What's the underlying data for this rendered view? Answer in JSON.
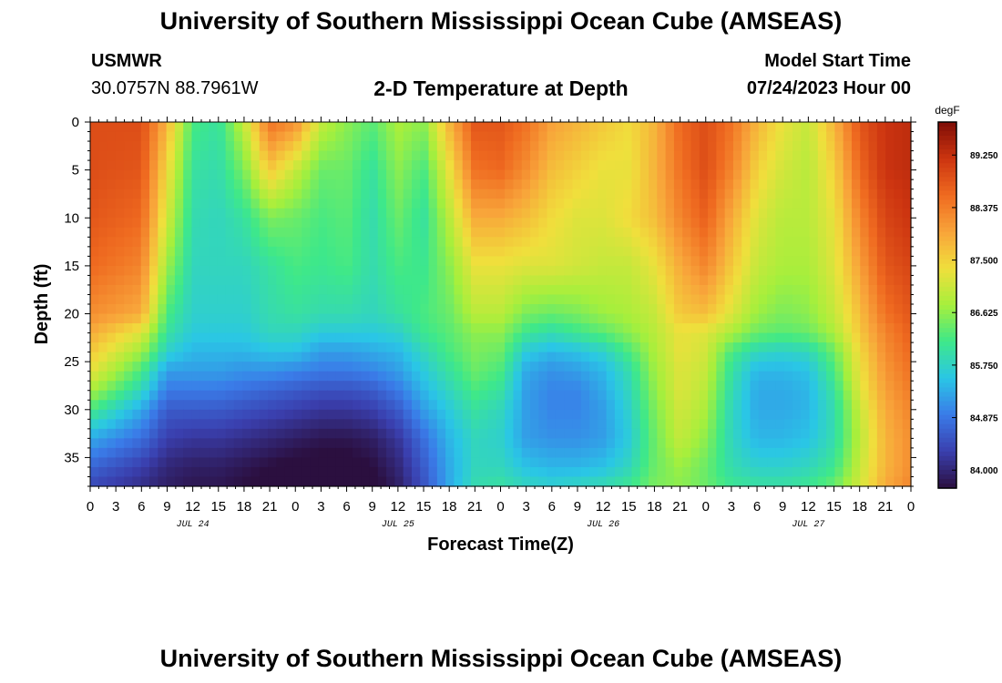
{
  "header": {
    "title": "University of Southern Mississippi Ocean Cube (AMSEAS)",
    "station": "USMWR",
    "coords": "30.0757N  88.7961W",
    "subtitle": "2-D Temperature at Depth",
    "start_label": "Model Start Time",
    "start_value": "07/24/2023 Hour 00"
  },
  "footer": {
    "title": "University of Southern Mississippi Ocean Cube (AMSEAS)"
  },
  "chart_data": {
    "type": "heatmap",
    "title": "2-D Temperature at Depth",
    "xlabel": "Forecast Time(Z)",
    "ylabel": "Depth (ft)",
    "units": "degF",
    "x_hours": [
      0,
      96
    ],
    "x_ticks": [
      "0",
      "3",
      "6",
      "9",
      "12",
      "15",
      "18",
      "21",
      "0",
      "3",
      "6",
      "9",
      "12",
      "15",
      "18",
      "21",
      "0",
      "3",
      "6",
      "9",
      "12",
      "15",
      "18",
      "21",
      "0",
      "3",
      "6",
      "9",
      "12",
      "15",
      "18",
      "21",
      "0"
    ],
    "date_labels": [
      {
        "label": "JUL 24",
        "hour": 12
      },
      {
        "label": "JUL 25",
        "hour": 36
      },
      {
        "label": "JUL 26",
        "hour": 60
      },
      {
        "label": "JUL 27",
        "hour": 84
      }
    ],
    "y_ticks": [
      0,
      5,
      10,
      15,
      20,
      25,
      30,
      35
    ],
    "ylim": [
      0,
      38
    ],
    "y_inverted": true,
    "colorbar_ticks": [
      "89.250",
      "88.375",
      "87.500",
      "86.625",
      "85.750",
      "84.875",
      "84.000"
    ],
    "colorbar_range": [
      83.7,
      89.8
    ],
    "colormap": [
      "#2b0f3f",
      "#3a3fae",
      "#3a7be8",
      "#2ac6e6",
      "#3ee88a",
      "#a6ef3c",
      "#f0df3c",
      "#f8a43a",
      "#ef6a20",
      "#cc3410",
      "#7e0d06"
    ],
    "depths": [
      0,
      5,
      10,
      15,
      20,
      22,
      24,
      26,
      28,
      30,
      33,
      36,
      38
    ],
    "hours": [
      0,
      6,
      9,
      12,
      15,
      18,
      21,
      24,
      27,
      30,
      33,
      36,
      39,
      42,
      45,
      48,
      51,
      54,
      57,
      60,
      63,
      66,
      69,
      72,
      75,
      78,
      81,
      84,
      87,
      90,
      93,
      96
    ],
    "values": [
      [
        88.9,
        88.9,
        87.8,
        86.2,
        86.0,
        87.0,
        88.5,
        88.2,
        87.0,
        86.6,
        86.3,
        86.8,
        86.6,
        87.8,
        88.8,
        88.8,
        88.5,
        88.0,
        87.8,
        87.6,
        87.4,
        87.8,
        88.6,
        88.9,
        88.5,
        87.8,
        87.3,
        87.0,
        87.8,
        88.8,
        89.2,
        89.3
      ],
      [
        88.9,
        88.8,
        87.4,
        86.0,
        85.9,
        86.5,
        87.6,
        87.0,
        86.4,
        86.4,
        86.0,
        86.6,
        86.2,
        87.3,
        88.5,
        88.6,
        88.2,
        87.7,
        87.5,
        87.3,
        87.3,
        87.8,
        88.5,
        88.9,
        88.3,
        87.5,
        87.1,
        86.9,
        87.5,
        88.6,
        89.2,
        89.3
      ],
      [
        88.8,
        88.6,
        87.1,
        85.9,
        85.8,
        86.0,
        86.5,
        86.4,
        86.2,
        86.3,
        85.9,
        86.4,
        86.0,
        86.9,
        87.9,
        87.9,
        87.7,
        87.4,
        87.2,
        87.2,
        87.4,
        87.7,
        88.3,
        88.7,
        87.9,
        87.2,
        86.9,
        86.9,
        87.3,
        88.3,
        89.0,
        89.2
      ],
      [
        88.6,
        88.3,
        86.7,
        85.8,
        85.8,
        85.8,
        86.0,
        86.2,
        86.1,
        86.2,
        85.9,
        86.2,
        86.1,
        86.6,
        87.3,
        87.3,
        87.2,
        87.2,
        87.1,
        87.0,
        87.0,
        87.3,
        87.9,
        88.3,
        87.6,
        87.0,
        86.8,
        86.8,
        87.2,
        88.0,
        88.8,
        89.0
      ],
      [
        88.2,
        87.9,
        86.2,
        85.7,
        85.7,
        85.7,
        85.9,
        86.0,
        85.9,
        85.9,
        85.8,
        86.0,
        86.2,
        86.4,
        86.9,
        86.9,
        86.5,
        86.4,
        86.5,
        86.7,
        86.8,
        87.0,
        87.6,
        87.7,
        87.2,
        86.7,
        86.5,
        86.6,
        87.0,
        87.7,
        88.5,
        88.8
      ],
      [
        87.9,
        87.2,
        86.0,
        85.6,
        85.6,
        85.6,
        85.8,
        85.8,
        85.6,
        85.6,
        85.6,
        85.7,
        86.1,
        86.3,
        86.6,
        86.6,
        86.1,
        85.9,
        86.1,
        86.3,
        86.6,
        86.9,
        87.3,
        87.2,
        86.8,
        86.4,
        86.3,
        86.4,
        86.8,
        87.6,
        88.3,
        88.7
      ],
      [
        87.6,
        86.7,
        85.7,
        85.4,
        85.4,
        85.4,
        85.5,
        85.5,
        85.2,
        85.2,
        85.3,
        85.4,
        85.8,
        86.2,
        86.5,
        86.4,
        85.6,
        85.4,
        85.5,
        85.7,
        86.2,
        86.8,
        87.3,
        87.1,
        86.2,
        85.8,
        85.7,
        85.8,
        86.4,
        87.4,
        88.2,
        88.6
      ],
      [
        87.3,
        86.2,
        85.2,
        85.2,
        85.2,
        85.1,
        85.1,
        85.0,
        84.9,
        84.9,
        85.0,
        85.2,
        85.6,
        86.0,
        86.4,
        86.2,
        85.3,
        85.1,
        85.2,
        85.4,
        85.9,
        86.7,
        87.2,
        87.0,
        86.0,
        85.4,
        85.4,
        85.5,
        86.2,
        87.3,
        88.1,
        88.5
      ],
      [
        86.8,
        85.8,
        84.9,
        84.9,
        84.9,
        84.8,
        84.7,
        84.6,
        84.5,
        84.5,
        84.6,
        84.9,
        85.4,
        85.8,
        86.2,
        86.0,
        85.2,
        85.0,
        85.0,
        85.3,
        85.8,
        86.6,
        87.2,
        86.9,
        85.9,
        85.3,
        85.3,
        85.4,
        86.0,
        87.2,
        88.0,
        88.4
      ],
      [
        86.2,
        85.3,
        84.6,
        84.6,
        84.6,
        84.5,
        84.4,
        84.3,
        84.2,
        84.2,
        84.3,
        84.6,
        85.2,
        85.6,
        86.0,
        85.8,
        85.2,
        85.0,
        85.0,
        85.2,
        85.7,
        86.5,
        87.1,
        86.8,
        85.8,
        85.3,
        85.3,
        85.4,
        85.9,
        87.0,
        87.9,
        88.3
      ],
      [
        85.3,
        84.8,
        84.3,
        84.2,
        84.2,
        84.1,
        84.0,
        83.9,
        83.8,
        83.8,
        83.9,
        84.2,
        84.8,
        85.4,
        85.8,
        85.7,
        85.2,
        85.1,
        85.1,
        85.2,
        85.6,
        86.4,
        87.0,
        86.6,
        85.8,
        85.4,
        85.4,
        85.5,
        85.9,
        86.9,
        87.8,
        88.2
      ],
      [
        84.7,
        84.3,
        84.0,
        83.9,
        83.9,
        83.8,
        83.7,
        83.6,
        83.6,
        83.6,
        83.7,
        84.0,
        84.6,
        85.3,
        85.8,
        85.8,
        85.5,
        85.4,
        85.4,
        85.5,
        85.8,
        86.4,
        86.7,
        86.4,
        85.9,
        85.7,
        85.7,
        85.8,
        86.1,
        87.0,
        87.8,
        88.2
      ],
      [
        84.4,
        84.1,
        83.9,
        83.8,
        83.8,
        83.7,
        83.6,
        83.5,
        83.5,
        83.5,
        83.6,
        83.9,
        84.5,
        85.3,
        85.9,
        86.0,
        85.8,
        85.7,
        85.8,
        85.9,
        86.1,
        86.5,
        86.6,
        86.4,
        86.1,
        86.0,
        86.0,
        86.1,
        86.4,
        87.1,
        87.9,
        88.3
      ]
    ]
  }
}
